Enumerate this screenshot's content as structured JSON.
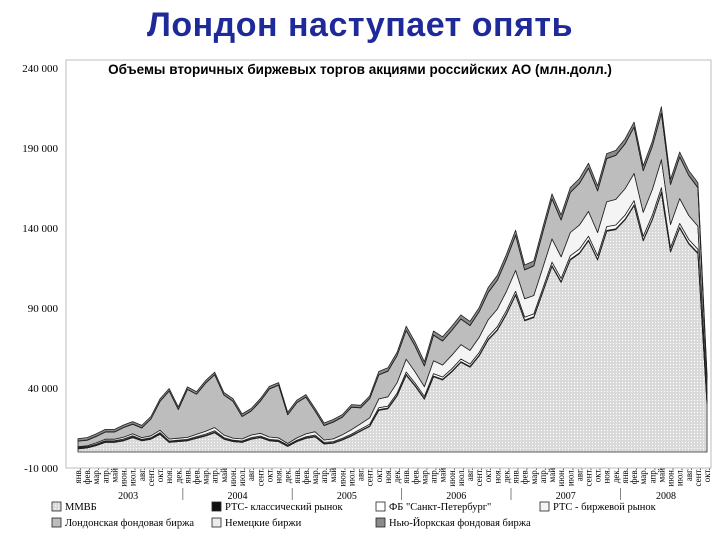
{
  "slide": {
    "title": "Лондон наступает опять"
  },
  "colors": {
    "title": "#1f2a9a",
    "mmvb": "#d6d6d6",
    "rts_classic": "#111111",
    "spb": "#ffffff",
    "rts_exchange": "#f4f4f4",
    "london": "#bdbdbd",
    "germany": "#ececec",
    "nyse": "#8a8a8a"
  },
  "chart_data": {
    "type": "area",
    "stacked": true,
    "title": "Объемы вторичных биржевых торгов акциями российских АО (млн.долл.)",
    "ylim": [
      -10000,
      240000
    ],
    "yticks": [
      -10000,
      40000,
      90000,
      140000,
      190000,
      240000
    ],
    "ytick_labels": [
      "-10 000",
      "40 000",
      "90 000",
      "140 000",
      "190 000",
      "240 000"
    ],
    "grid": false,
    "legend_position": "bottom",
    "years": [
      "2003",
      "2004",
      "2005",
      "2006",
      "2007",
      "2008"
    ],
    "x": [
      "янв.",
      "фев.",
      "мар.",
      "апр.",
      "май",
      "июн.",
      "июл.",
      "авг.",
      "сент.",
      "окт.",
      "ноя.",
      "дек.",
      "янв.",
      "фев.",
      "мар.",
      "апр.",
      "май",
      "июн.",
      "июл.",
      "авг.",
      "сент.",
      "окт.",
      "ноя.",
      "дек.",
      "янв.",
      "фев.",
      "мар.",
      "апр.",
      "май",
      "июн.",
      "июл.",
      "авг.",
      "сент.",
      "окт.",
      "ноя.",
      "дек.",
      "янв.",
      "фев.",
      "мар.",
      "апр.",
      "май",
      "июн.",
      "июл.",
      "авг.",
      "сент.",
      "окт.",
      "ноя.",
      "дек.",
      "янв.",
      "фев.",
      "мар.",
      "апр.",
      "май",
      "июн.",
      "июл.",
      "авг.",
      "сент.",
      "окт.",
      "ноя.",
      "дек.",
      "янв.",
      "фев.",
      "мар.",
      "апр.",
      "май",
      "июн.",
      "июл.",
      "авг.",
      "сент.",
      "окт."
    ],
    "series": [
      {
        "name": "ММВБ",
        "key": "mmvb",
        "values": [
          2000,
          2500,
          4000,
          6000,
          6000,
          7000,
          9000,
          7000,
          8000,
          11000,
          6000,
          6500,
          7000,
          8500,
          10000,
          12000,
          8000,
          6500,
          6000,
          8000,
          9000,
          7000,
          6500,
          3500,
          6500,
          8500,
          9500,
          5000,
          5500,
          7500,
          10000,
          13000,
          16000,
          26000,
          27000,
          35000,
          48000,
          41000,
          33000,
          47000,
          45000,
          50000,
          56000,
          53000,
          60000,
          70000,
          76000,
          86000,
          98000,
          82000,
          84000,
          100000,
          116000,
          106000,
          120000,
          124000,
          132000,
          120000,
          138000,
          139000,
          145000,
          154000,
          132000,
          145000,
          162000,
          125000,
          140000,
          130000,
          124000,
          30000
        ]
      },
      {
        "name": "РТС- классический рынок",
        "key": "rts_classic",
        "values": [
          400,
          400,
          400,
          500,
          500,
          500,
          500,
          400,
          400,
          500,
          400,
          400,
          400,
          500,
          500,
          500,
          400,
          400,
          400,
          400,
          400,
          400,
          400,
          400,
          400,
          400,
          400,
          400,
          400,
          400,
          400,
          400,
          400,
          500,
          500,
          500,
          500,
          500,
          500,
          500,
          500,
          500,
          500,
          500,
          500,
          500,
          500,
          500,
          500,
          500,
          500,
          500,
          500,
          500,
          500,
          500,
          500,
          500,
          500,
          500,
          500,
          500,
          500,
          500,
          500,
          500,
          500,
          500,
          500,
          500
        ]
      },
      {
        "name": "ФБ \"Санкт-Петербург\"",
        "key": "spb",
        "values": [
          400,
          400,
          500,
          500,
          500,
          600,
          600,
          500,
          500,
          600,
          500,
          500,
          500,
          600,
          700,
          800,
          600,
          500,
          500,
          600,
          600,
          500,
          500,
          400,
          500,
          600,
          700,
          600,
          600,
          700,
          800,
          900,
          1000,
          1200,
          1200,
          1300,
          1500,
          1400,
          1300,
          1500,
          1400,
          1500,
          1600,
          1500,
          1600,
          1700,
          1800,
          1900,
          2000,
          1800,
          1800,
          2000,
          2200,
          2000,
          2200,
          2300,
          2400,
          2200,
          2400,
          2400,
          2500,
          2600,
          2300,
          2500,
          2700,
          2200,
          2400,
          2300,
          2200,
          800
        ]
      },
      {
        "name": "РТС - биржевой рынок",
        "key": "rts_exchange",
        "values": [
          500,
          600,
          800,
          1000,
          1000,
          1200,
          1300,
          1100,
          1200,
          1500,
          1200,
          1200,
          1200,
          1500,
          1800,
          2000,
          1600,
          1300,
          1300,
          1600,
          1700,
          1500,
          1400,
          1000,
          1400,
          1800,
          2100,
          1500,
          1700,
          2200,
          2800,
          3300,
          4000,
          5500,
          5800,
          6500,
          8000,
          7000,
          6000,
          8000,
          7500,
          8500,
          9000,
          8500,
          9500,
          10500,
          11000,
          12000,
          13000,
          11500,
          11500,
          13000,
          14500,
          13500,
          14500,
          15000,
          15500,
          14500,
          15500,
          16000,
          16500,
          17000,
          15000,
          16000,
          17500,
          14500,
          15500,
          15000,
          14500,
          4500
        ]
      },
      {
        "name": "Лондонская фондовая биржа",
        "key": "london",
        "values": [
          3500,
          3500,
          4000,
          4500,
          4500,
          6000,
          6000,
          6000,
          10500,
          18000,
          30000,
          18000,
          30000,
          25000,
          30000,
          33000,
          25000,
          23000,
          14000,
          15000,
          20000,
          30000,
          33000,
          18000,
          22000,
          23000,
          13000,
          9000,
          10500,
          11000,
          14000,
          10000,
          12000,
          15000,
          16000,
          17000,
          18000,
          16000,
          13000,
          16000,
          15000,
          15500,
          16000,
          15500,
          16000,
          17000,
          18000,
          20000,
          22000,
          18000,
          18500,
          22000,
          25000,
          23000,
          25000,
          26000,
          27000,
          26000,
          27000,
          27500,
          28000,
          29000,
          26000,
          27000,
          29000,
          25000,
          26000,
          25000,
          24000,
          10000
        ]
      },
      {
        "name": "Немецкие биржи",
        "key": "germany",
        "values": [
          100,
          100,
          100,
          100,
          100,
          100,
          100,
          100,
          100,
          100,
          100,
          100,
          100,
          100,
          100,
          100,
          100,
          100,
          100,
          100,
          100,
          100,
          100,
          100,
          100,
          100,
          100,
          100,
          100,
          100,
          100,
          100,
          100,
          100,
          100,
          100,
          100,
          100,
          100,
          100,
          100,
          100,
          100,
          100,
          100,
          100,
          100,
          100,
          100,
          100,
          100,
          100,
          100,
          100,
          100,
          100,
          100,
          100,
          100,
          100,
          100,
          100,
          100,
          100,
          100,
          100,
          100,
          100,
          100,
          100
        ]
      },
      {
        "name": "Нью-Йоркская фондовая биржа",
        "key": "nyse",
        "values": [
          1500,
          1500,
          1500,
          1500,
          1500,
          1500,
          1500,
          1500,
          1500,
          1500,
          1500,
          1500,
          1500,
          1500,
          1500,
          1500,
          1500,
          1500,
          1500,
          1500,
          1500,
          1500,
          1500,
          1500,
          1500,
          1500,
          1500,
          1500,
          1500,
          1500,
          1500,
          1500,
          1500,
          2000,
          2000,
          2000,
          2500,
          2500,
          2500,
          2500,
          2500,
          2500,
          2500,
          2500,
          2500,
          3000,
          3000,
          3000,
          3000,
          3000,
          3000,
          3000,
          3000,
          3000,
          3000,
          3000,
          3000,
          3000,
          3000,
          3000,
          3000,
          3000,
          3000,
          3000,
          4000,
          3000,
          3000,
          3000,
          3000,
          3000
        ]
      }
    ]
  }
}
